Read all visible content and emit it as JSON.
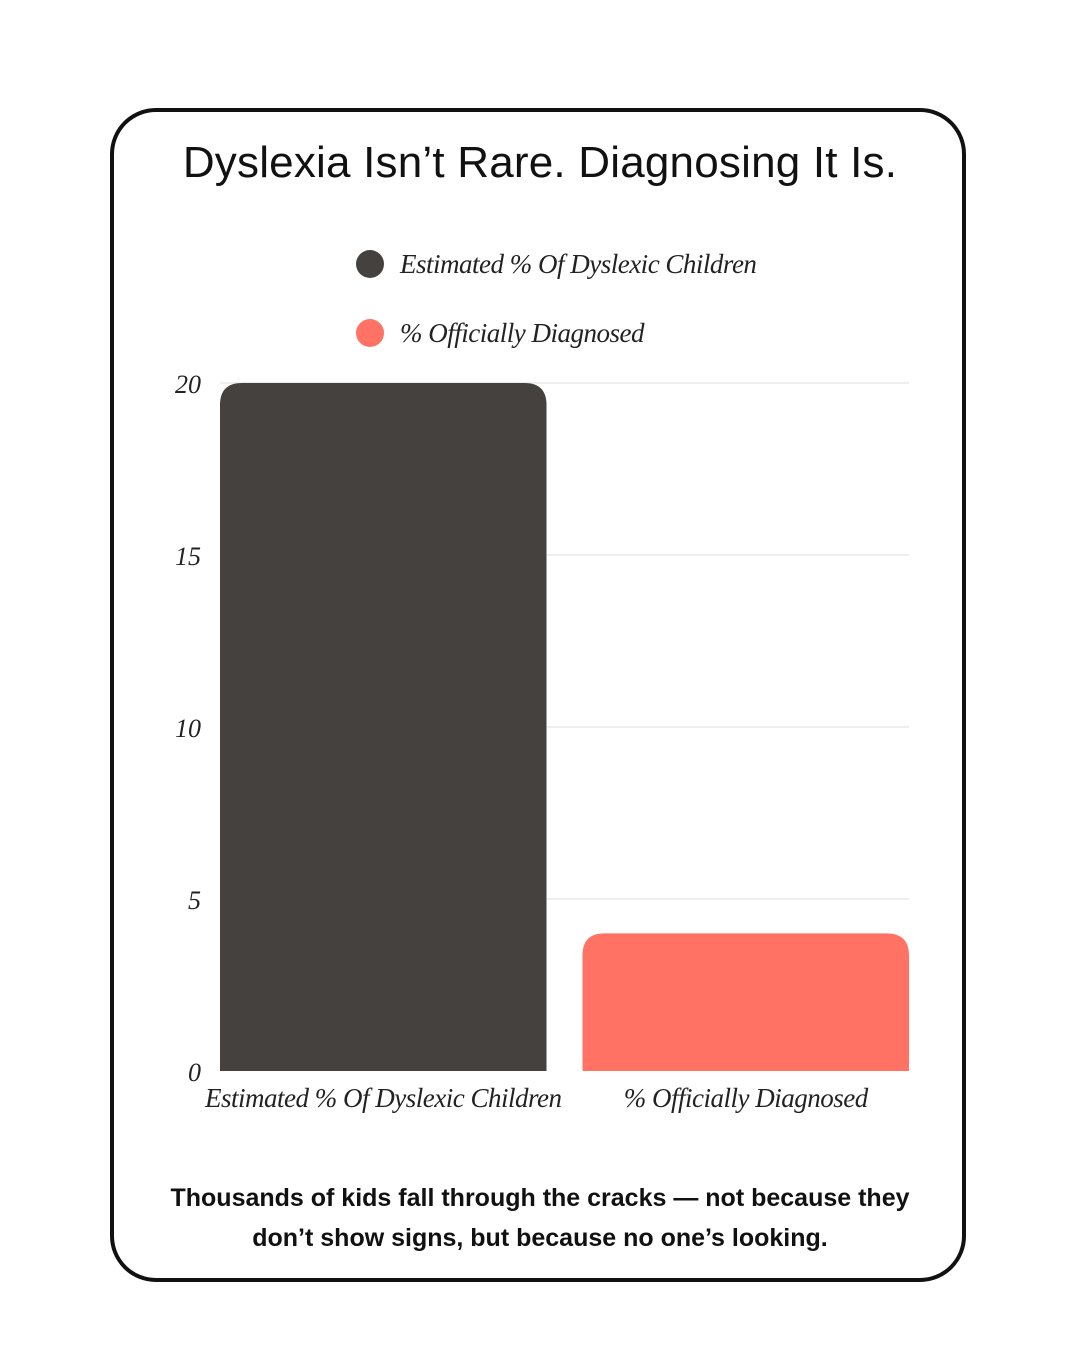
{
  "title": "Dyslexia Isn’t Rare. Diagnosing It Is.",
  "footer": "Thousands of kids fall through the cracks — not because they don’t show signs, but because no one’s looking.",
  "colors": {
    "estimated": "#45413e",
    "diagnosed": "#ff7264",
    "grid": "#dddddd",
    "border": "#111111"
  },
  "chart_data": {
    "type": "bar",
    "categories": [
      "Estimated % Of Dyslexic Children",
      "% Officially Diagnosed"
    ],
    "values": [
      20,
      4
    ],
    "colors": [
      "#45413e",
      "#ff7264"
    ],
    "legend": [
      "Estimated % Of Dyslexic Children",
      "% Officially Diagnosed"
    ],
    "legend_position": "top-center",
    "ylim": [
      0,
      20
    ],
    "yticks": [
      0,
      5,
      10,
      15,
      20
    ],
    "grid": true
  }
}
